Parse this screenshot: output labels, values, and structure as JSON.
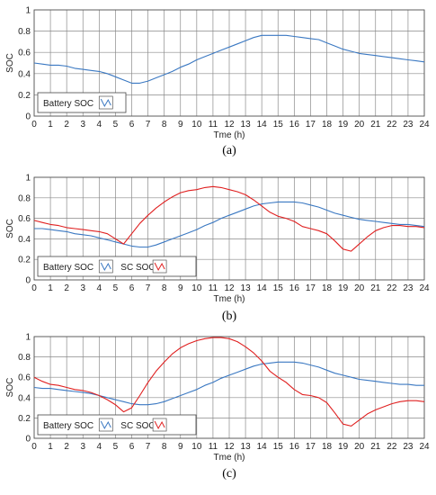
{
  "chart_data": [
    {
      "type": "line",
      "caption": "(a)",
      "xlabel": "Tme (h)",
      "ylabel": "SOC",
      "xlim": [
        0,
        24
      ],
      "ylim": [
        0,
        1
      ],
      "xticks": [
        "0",
        "1",
        "2",
        "3",
        "4",
        "5",
        "6",
        "7",
        "8",
        "9",
        "10",
        "11",
        "12",
        "13",
        "14",
        "15",
        "16",
        "17",
        "18",
        "19",
        "20",
        "21",
        "22",
        "23",
        "24"
      ],
      "yticks": [
        "0",
        "0.2",
        "0.4",
        "0.6",
        "0.8",
        "1"
      ],
      "grid": true,
      "legend_position": "bottom-left",
      "series": [
        {
          "name": "Battery SOC",
          "color": "#3a78c2",
          "x": [
            0,
            0.5,
            1,
            1.5,
            2,
            2.5,
            3,
            3.5,
            4,
            4.5,
            5,
            5.5,
            6,
            6.5,
            7,
            7.5,
            8,
            8.5,
            9,
            9.5,
            10,
            10.5,
            11,
            11.5,
            12,
            12.5,
            13,
            13.5,
            14,
            14.5,
            15,
            15.5,
            16,
            16.5,
            17,
            17.5,
            18,
            18.5,
            19,
            19.5,
            20,
            20.5,
            21,
            21.5,
            22,
            22.5,
            23,
            23.5,
            24
          ],
          "y": [
            0.5,
            0.49,
            0.48,
            0.48,
            0.47,
            0.45,
            0.44,
            0.43,
            0.42,
            0.4,
            0.37,
            0.34,
            0.31,
            0.31,
            0.33,
            0.36,
            0.39,
            0.42,
            0.46,
            0.49,
            0.53,
            0.56,
            0.59,
            0.62,
            0.65,
            0.68,
            0.71,
            0.74,
            0.76,
            0.76,
            0.76,
            0.76,
            0.75,
            0.74,
            0.73,
            0.72,
            0.69,
            0.66,
            0.63,
            0.61,
            0.59,
            0.58,
            0.57,
            0.56,
            0.55,
            0.54,
            0.53,
            0.52,
            0.51
          ]
        }
      ]
    },
    {
      "type": "line",
      "caption": "(b)",
      "xlabel": "Tme (h)",
      "ylabel": "SOC",
      "xlim": [
        0,
        24
      ],
      "ylim": [
        0,
        1
      ],
      "xticks": [
        "0",
        "1",
        "2",
        "3",
        "4",
        "5",
        "6",
        "7",
        "8",
        "9",
        "10",
        "11",
        "12",
        "13",
        "14",
        "15",
        "16",
        "17",
        "18",
        "19",
        "20",
        "21",
        "22",
        "23",
        "24"
      ],
      "yticks": [
        "0",
        "0.2",
        "0.4",
        "0.6",
        "0.8",
        "1"
      ],
      "grid": true,
      "legend_position": "bottom-left",
      "series": [
        {
          "name": "Battery SOC",
          "color": "#3a78c2",
          "x": [
            0,
            0.5,
            1,
            1.5,
            2,
            2.5,
            3,
            3.5,
            4,
            4.5,
            5,
            5.5,
            6,
            6.5,
            7,
            7.5,
            8,
            8.5,
            9,
            9.5,
            10,
            10.5,
            11,
            11.5,
            12,
            12.5,
            13,
            13.5,
            14,
            14.5,
            15,
            15.5,
            16,
            16.5,
            17,
            17.5,
            18,
            18.5,
            19,
            19.5,
            20,
            20.5,
            21,
            21.5,
            22,
            22.5,
            23,
            23.5,
            24
          ],
          "y": [
            0.5,
            0.5,
            0.49,
            0.48,
            0.47,
            0.45,
            0.44,
            0.43,
            0.41,
            0.39,
            0.37,
            0.35,
            0.33,
            0.32,
            0.32,
            0.34,
            0.37,
            0.4,
            0.43,
            0.46,
            0.49,
            0.53,
            0.56,
            0.6,
            0.63,
            0.66,
            0.69,
            0.72,
            0.74,
            0.75,
            0.76,
            0.76,
            0.76,
            0.75,
            0.73,
            0.71,
            0.68,
            0.65,
            0.63,
            0.61,
            0.59,
            0.58,
            0.57,
            0.56,
            0.55,
            0.54,
            0.54,
            0.53,
            0.52
          ]
        },
        {
          "name": "SC SOC",
          "color": "#e02020",
          "x": [
            0,
            0.5,
            1,
            1.5,
            2,
            2.5,
            3,
            3.5,
            4,
            4.5,
            5,
            5.5,
            6,
            6.5,
            7,
            7.5,
            8,
            8.5,
            9,
            9.5,
            10,
            10.5,
            11,
            11.5,
            12,
            12.5,
            13,
            13.5,
            14,
            14.5,
            15,
            15.5,
            16,
            16.5,
            17,
            17.5,
            18,
            18.5,
            19,
            19.5,
            20,
            20.5,
            21,
            21.5,
            22,
            22.5,
            23,
            23.5,
            24
          ],
          "y": [
            0.58,
            0.56,
            0.54,
            0.53,
            0.51,
            0.5,
            0.49,
            0.48,
            0.47,
            0.45,
            0.4,
            0.35,
            0.45,
            0.55,
            0.63,
            0.7,
            0.76,
            0.81,
            0.85,
            0.87,
            0.88,
            0.9,
            0.91,
            0.9,
            0.88,
            0.86,
            0.83,
            0.78,
            0.72,
            0.66,
            0.62,
            0.6,
            0.57,
            0.52,
            0.5,
            0.48,
            0.45,
            0.38,
            0.3,
            0.28,
            0.35,
            0.42,
            0.48,
            0.51,
            0.53,
            0.53,
            0.52,
            0.52,
            0.51
          ]
        }
      ]
    },
    {
      "type": "line",
      "caption": "(c)",
      "xlabel": "Tme (h)",
      "ylabel": "SOC",
      "xlim": [
        0,
        24
      ],
      "ylim": [
        0,
        1
      ],
      "xticks": [
        "0",
        "1",
        "2",
        "3",
        "4",
        "5",
        "6",
        "7",
        "8",
        "9",
        "10",
        "11",
        "12",
        "13",
        "14",
        "15",
        "16",
        "17",
        "18",
        "19",
        "20",
        "21",
        "22",
        "23",
        "24"
      ],
      "yticks": [
        "0",
        "0.2",
        "0.4",
        "0.6",
        "0.8",
        "1"
      ],
      "grid": true,
      "legend_position": "bottom-left",
      "series": [
        {
          "name": "Battery SOC",
          "color": "#3a78c2",
          "x": [
            0,
            0.5,
            1,
            1.5,
            2,
            2.5,
            3,
            3.5,
            4,
            4.5,
            5,
            5.5,
            6,
            6.5,
            7,
            7.5,
            8,
            8.5,
            9,
            9.5,
            10,
            10.5,
            11,
            11.5,
            12,
            12.5,
            13,
            13.5,
            14,
            14.5,
            15,
            15.5,
            16,
            16.5,
            17,
            17.5,
            18,
            18.5,
            19,
            19.5,
            20,
            20.5,
            21,
            21.5,
            22,
            22.5,
            23,
            23.5,
            24
          ],
          "y": [
            0.5,
            0.49,
            0.49,
            0.48,
            0.47,
            0.46,
            0.45,
            0.44,
            0.42,
            0.4,
            0.38,
            0.36,
            0.34,
            0.33,
            0.33,
            0.34,
            0.36,
            0.39,
            0.42,
            0.45,
            0.48,
            0.52,
            0.55,
            0.59,
            0.62,
            0.65,
            0.68,
            0.71,
            0.73,
            0.74,
            0.75,
            0.75,
            0.75,
            0.74,
            0.72,
            0.7,
            0.67,
            0.64,
            0.62,
            0.6,
            0.58,
            0.57,
            0.56,
            0.55,
            0.54,
            0.53,
            0.53,
            0.52,
            0.52
          ]
        },
        {
          "name": "SC SOC",
          "color": "#e02020",
          "x": [
            0,
            0.5,
            1,
            1.5,
            2,
            2.5,
            3,
            3.5,
            4,
            4.5,
            5,
            5.5,
            6,
            6.5,
            7,
            7.5,
            8,
            8.5,
            9,
            9.5,
            10,
            10.5,
            11,
            11.5,
            12,
            12.5,
            13,
            13.5,
            14,
            14.5,
            15,
            15.5,
            16,
            16.5,
            17,
            17.5,
            18,
            18.5,
            19,
            19.5,
            20,
            20.5,
            21,
            21.5,
            22,
            22.5,
            23,
            23.5,
            24
          ],
          "y": [
            0.6,
            0.56,
            0.53,
            0.52,
            0.5,
            0.48,
            0.47,
            0.45,
            0.42,
            0.38,
            0.33,
            0.26,
            0.3,
            0.42,
            0.55,
            0.66,
            0.75,
            0.83,
            0.89,
            0.93,
            0.96,
            0.98,
            0.99,
            0.99,
            0.98,
            0.95,
            0.9,
            0.84,
            0.76,
            0.66,
            0.6,
            0.55,
            0.48,
            0.43,
            0.42,
            0.4,
            0.35,
            0.25,
            0.14,
            0.12,
            0.18,
            0.24,
            0.28,
            0.31,
            0.34,
            0.36,
            0.37,
            0.37,
            0.36
          ]
        }
      ]
    }
  ]
}
